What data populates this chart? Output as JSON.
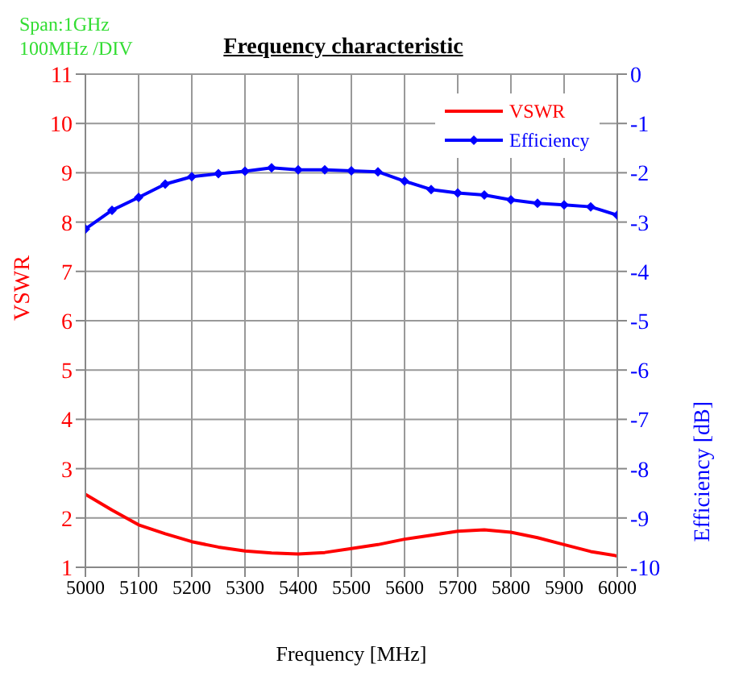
{
  "chart_data": {
    "type": "line",
    "title": "Frequency characteristic",
    "xlabel": "Frequency [MHz]",
    "ylabel": "VSWR",
    "y2label": "Efficiency [dB]",
    "annotations": [
      "Span:1GHz",
      "100MHz /DIV"
    ],
    "x": [
      5000,
      5050,
      5100,
      5150,
      5200,
      5250,
      5300,
      5350,
      5400,
      5450,
      5500,
      5550,
      5600,
      5650,
      5700,
      5750,
      5800,
      5850,
      5900,
      5950,
      6000
    ],
    "series": [
      {
        "name": "VSWR",
        "color": "#ff0000",
        "marker": "none",
        "values": [
          2.48,
          2.16,
          1.86,
          1.68,
          1.52,
          1.41,
          1.33,
          1.29,
          1.27,
          1.3,
          1.38,
          1.46,
          1.57,
          1.65,
          1.73,
          1.76,
          1.71,
          1.6,
          1.46,
          1.32,
          1.23
        ]
      },
      {
        "name": "Efficiency",
        "color": "#0000ff",
        "marker": "diamond",
        "axis": "y2",
        "values": [
          -3.14,
          -2.76,
          -2.5,
          -2.23,
          -2.08,
          -2.02,
          -1.97,
          -1.9,
          -1.94,
          -1.94,
          -1.96,
          -1.98,
          -2.17,
          -2.34,
          -2.41,
          -2.45,
          -2.55,
          -2.62,
          -2.65,
          -2.69,
          -2.86
        ]
      }
    ],
    "xlim": [
      5000,
      6000
    ],
    "xticks": [
      5000,
      5100,
      5200,
      5300,
      5400,
      5500,
      5600,
      5700,
      5800,
      5900,
      6000
    ],
    "ylim": [
      1,
      11
    ],
    "yticks": [
      1,
      2,
      3,
      4,
      5,
      6,
      7,
      8,
      9,
      10,
      11
    ],
    "y2lim": [
      -10,
      0
    ],
    "y2ticks": [
      -10,
      -9,
      -8,
      -7,
      -6,
      -5,
      -4,
      -3,
      -2,
      -1,
      0
    ],
    "grid": true,
    "legend": "top right",
    "line_style": "solid"
  }
}
